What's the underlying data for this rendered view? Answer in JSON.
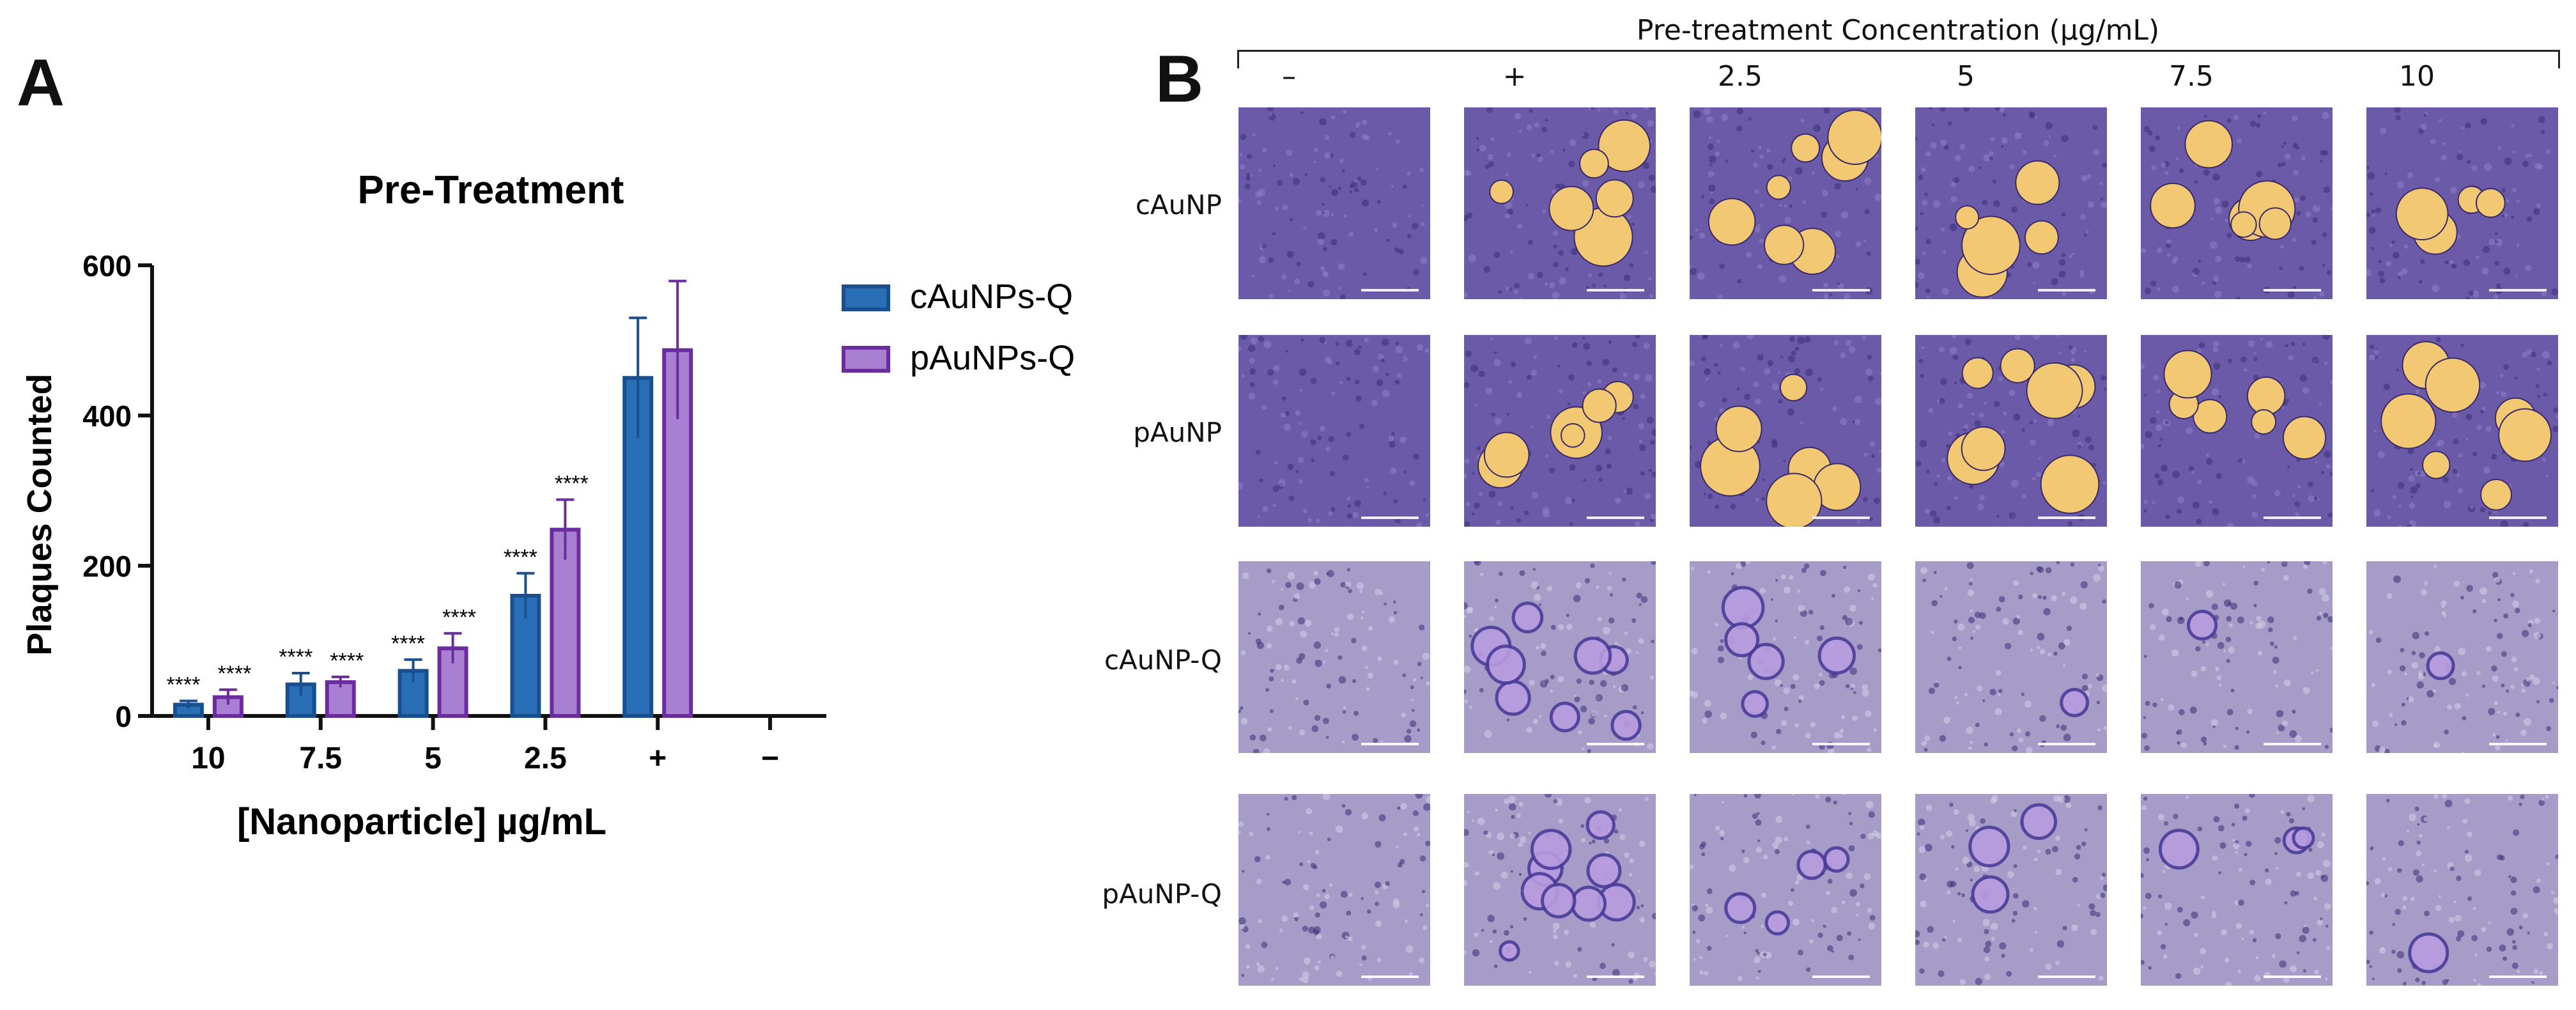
{
  "panel_a": {
    "letter": "A",
    "chart_data": {
      "type": "bar",
      "title": "Pre-Treatment",
      "xlabel": "[Nanoparticle] µg/mL",
      "ylabel": "Plaques Counted",
      "categories": [
        "10",
        "7.5",
        "5",
        "2.5",
        "+",
        "−"
      ],
      "ylim": [
        0,
        600
      ],
      "yticks": [
        0,
        200,
        400,
        600
      ],
      "series": [
        {
          "name": "cAuNPs-Q",
          "color": "#2a6fb6",
          "edge": "#1a4f8f",
          "values": [
            15,
            42,
            60,
            160,
            450,
            0
          ],
          "errors": [
            5,
            15,
            15,
            30,
            80,
            0
          ],
          "significance": [
            "****",
            "****",
            "****",
            "****",
            "",
            ""
          ]
        },
        {
          "name": "pAuNPs-Q",
          "color": "#a97fd2",
          "edge": "#6a2c9e",
          "values": [
            25,
            45,
            90,
            248,
            487,
            0
          ],
          "errors": [
            10,
            7,
            20,
            40,
            92,
            0
          ],
          "significance": [
            "****",
            "****",
            "****",
            "****",
            "",
            ""
          ]
        }
      ],
      "legend": "right",
      "grid": false
    }
  },
  "panel_b": {
    "letter": "B",
    "title": "Pre-treatment Concentration (µg/mL)",
    "columns": [
      "–",
      "+",
      "2.5",
      "5",
      "7.5",
      "10"
    ],
    "rows": [
      "cAuNP",
      "pAuNP",
      "cAuNP-Q",
      "pAuNP-Q"
    ],
    "plaque_pattern": [
      [
        0,
        6,
        7,
        5,
        6,
        5
      ],
      [
        0,
        6,
        6,
        7,
        6,
        7
      ],
      [
        0,
        8,
        5,
        1,
        1,
        1
      ],
      [
        0,
        9,
        4,
        3,
        3,
        1
      ]
    ],
    "colors": {
      "stained_monolayer_dark": "#6b5aa8",
      "stained_monolayer_light": "#a79bc8",
      "plaque_yellow": "#f3c873",
      "plaque_light_purple": "#b89be0"
    }
  }
}
